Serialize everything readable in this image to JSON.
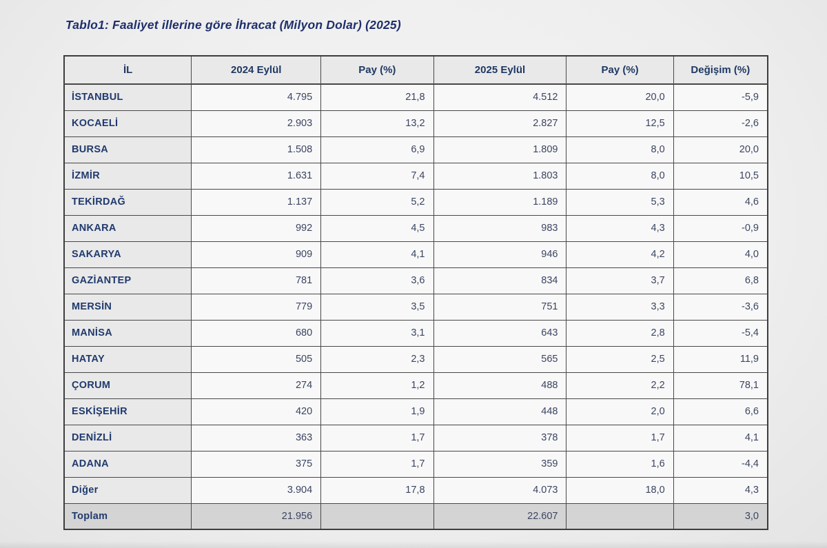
{
  "title": "Tablo1: Faaliyet illerine göre İhracat (Milyon Dolar) (2025)",
  "table": {
    "columns": [
      "İL",
      "2024 Eylül",
      "Pay  (%)",
      "2025 Eylül",
      "Pay  (%)",
      "Değişim (%)"
    ],
    "rows": [
      [
        "İSTANBUL",
        "4.795",
        "21,8",
        "4.512",
        "20,0",
        "-5,9"
      ],
      [
        "KOCAELİ",
        "2.903",
        "13,2",
        "2.827",
        "12,5",
        "-2,6"
      ],
      [
        "BURSA",
        "1.508",
        "6,9",
        "1.809",
        "8,0",
        "20,0"
      ],
      [
        "İZMİR",
        "1.631",
        "7,4",
        "1.803",
        "8,0",
        "10,5"
      ],
      [
        "TEKİRDAĞ",
        "1.137",
        "5,2",
        "1.189",
        "5,3",
        "4,6"
      ],
      [
        "ANKARA",
        "992",
        "4,5",
        "983",
        "4,3",
        "-0,9"
      ],
      [
        "SAKARYA",
        "909",
        "4,1",
        "946",
        "4,2",
        "4,0"
      ],
      [
        "GAZİANTEP",
        "781",
        "3,6",
        "834",
        "3,7",
        "6,8"
      ],
      [
        "MERSİN",
        "779",
        "3,5",
        "751",
        "3,3",
        "-3,6"
      ],
      [
        "MANİSA",
        "680",
        "3,1",
        "643",
        "2,8",
        "-5,4"
      ],
      [
        "HATAY",
        "505",
        "2,3",
        "565",
        "2,5",
        "11,9"
      ],
      [
        "ÇORUM",
        "274",
        "1,2",
        "488",
        "2,2",
        "78,1"
      ],
      [
        "ESKİŞEHİR",
        "420",
        "1,9",
        "448",
        "2,0",
        "6,6"
      ],
      [
        "DENİZLİ",
        "363",
        "1,7",
        "378",
        "1,7",
        "4,1"
      ],
      [
        "ADANA",
        "375",
        "1,7",
        "359",
        "1,6",
        "-4,4"
      ],
      [
        "Diğer",
        "3.904",
        "17,8",
        "4.073",
        "18,0",
        "4,3"
      ]
    ],
    "total_row": [
      "Toplam",
      "21.956",
      "",
      "22.607",
      "",
      "3,0"
    ],
    "colors": {
      "title_text": "#1e2f6b",
      "header_text": "#1f3864",
      "number_text": "#3b4462",
      "grid_line": "#474747",
      "label_cell_bg": "#e9e9e9",
      "value_cell_bg": "#f8f8f8",
      "total_row_bg": "#d4d4d4"
    }
  }
}
